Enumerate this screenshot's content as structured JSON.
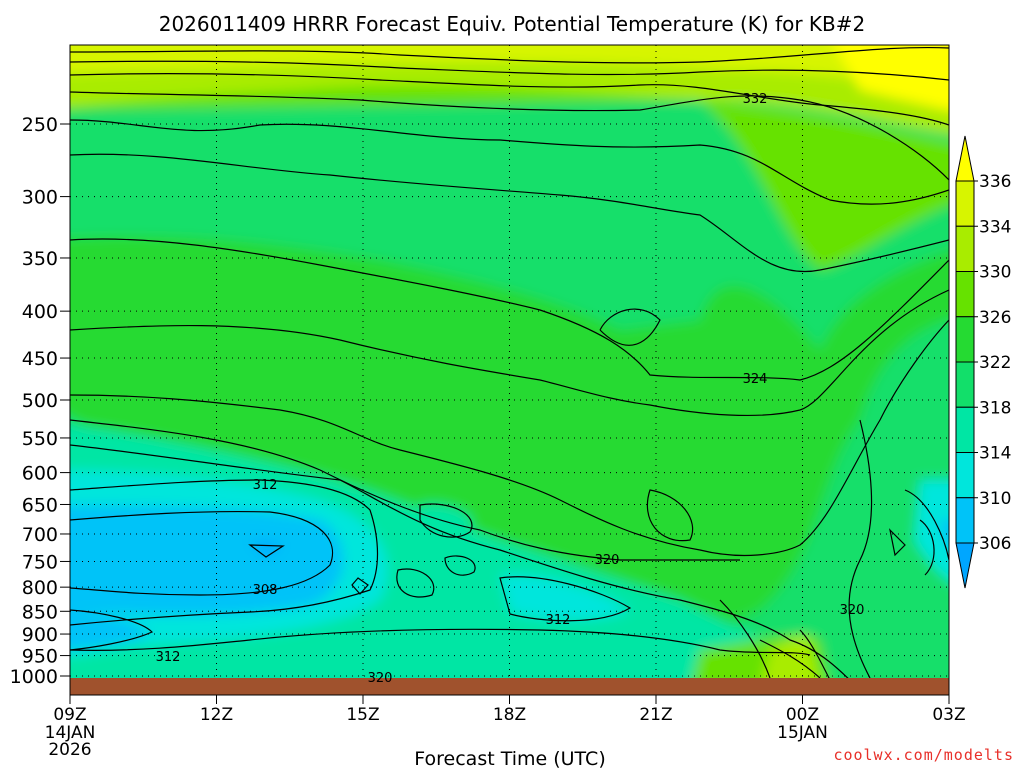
{
  "title": "2026011409 HRRR Forecast Equiv. Potential Temperature (K) for KB#2",
  "xlabel": "Forecast Time (UTC)",
  "credit": "coolwx.com/modelts",
  "x_ticks": [
    {
      "label": "09Z",
      "hour": 0,
      "sub": [
        "14JAN",
        "2026"
      ]
    },
    {
      "label": "12Z",
      "hour": 3,
      "sub": []
    },
    {
      "label": "15Z",
      "hour": 6,
      "sub": []
    },
    {
      "label": "18Z",
      "hour": 9,
      "sub": []
    },
    {
      "label": "21Z",
      "hour": 12,
      "sub": []
    },
    {
      "label": "00Z",
      "hour": 15,
      "sub": [
        "15JAN"
      ]
    },
    {
      "label": "03Z",
      "hour": 18,
      "sub": []
    }
  ],
  "y_ticks": [
    250,
    300,
    350,
    400,
    450,
    500,
    550,
    600,
    650,
    700,
    750,
    800,
    850,
    900,
    950,
    1000
  ],
  "colorbar": {
    "labels": [
      "336",
      "334",
      "330",
      "326",
      "322",
      "318",
      "314",
      "310",
      "306"
    ],
    "colors": [
      "#ffff00",
      "#d7f500",
      "#a9ec00",
      "#66e200",
      "#25da32",
      "#12df6a",
      "#00e6a4",
      "#00e6dc",
      "#00c3f8",
      "#00a6ff"
    ]
  },
  "contour_labels": [
    "332",
    "324",
    "312",
    "320",
    "308",
    "320",
    "312",
    "312",
    "320"
  ],
  "chart_data": {
    "type": "heatmap",
    "title": "2026011409 HRRR Forecast Equiv. Potential Temperature (K) for KB#2",
    "xlabel": "Forecast Time (UTC)",
    "ylabel": "",
    "x_hours": [
      0,
      3,
      6,
      9,
      12,
      15,
      18
    ],
    "x_tick_labels": [
      "09Z 14JAN 2026",
      "12Z",
      "15Z",
      "18Z",
      "21Z",
      "00Z 15JAN",
      "03Z"
    ],
    "y_levels_hpa": [
      250,
      300,
      350,
      400,
      450,
      500,
      550,
      600,
      650,
      700,
      750,
      800,
      850,
      900,
      950,
      1000
    ],
    "y_range_hpa": [
      200,
      1000
    ],
    "y_axis": "pressure, log scale, inverted",
    "x_range_hours": [
      0,
      18
    ],
    "colorbar_values_K": [
      306,
      310,
      314,
      318,
      322,
      326,
      330,
      334,
      336
    ],
    "labeled_contours_K": [
      332,
      324,
      312,
      320,
      308,
      320,
      312,
      312,
      320
    ],
    "minimum_region": {
      "approx_time": "12Z",
      "approx_level_hpa": 710,
      "value_K_below": 308
    },
    "maximum_region": {
      "approx_time": "02Z",
      "approx_level_hpa": 205,
      "value_K_above": 334
    },
    "grid": true
  }
}
